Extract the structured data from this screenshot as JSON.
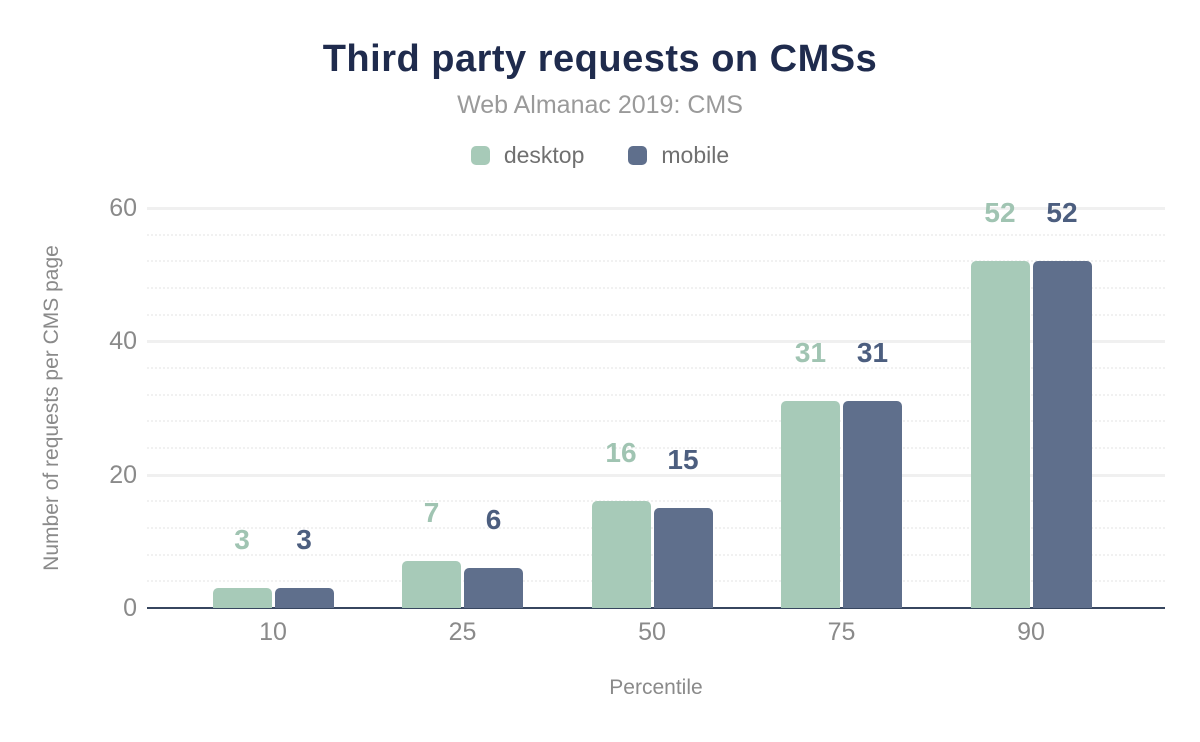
{
  "chart_data": {
    "type": "bar",
    "title": "Third party requests on CMSs",
    "subtitle": "Web Almanac 2019: CMS",
    "xlabel": "Percentile",
    "ylabel": "Number of requests per CMS page",
    "categories": [
      "10",
      "25",
      "50",
      "75",
      "90"
    ],
    "series": [
      {
        "name": "desktop",
        "color": "#a7cab8",
        "label_color": "#a0c4b2",
        "values": [
          3,
          7,
          16,
          31,
          52
        ]
      },
      {
        "name": "mobile",
        "color": "#5f6f8c",
        "label_color": "#4c5e7f",
        "values": [
          3,
          6,
          15,
          31,
          52
        ]
      }
    ],
    "ylim": [
      0,
      60
    ],
    "yticks": [
      0,
      20,
      40,
      60
    ],
    "grid": {
      "orientation": "horizontal",
      "major_step": 20,
      "minor_step": 4
    },
    "legend_position": "top"
  },
  "colors": {
    "background": "#ffffff",
    "title": "#1f2b4d",
    "subtitle": "#9a9a9a",
    "axis_text": "#8a8a8a",
    "legend_text": "#707070",
    "axis_line": "#37465f",
    "grid_major": "#f0f0f0",
    "grid_minor": "#f1f1f1"
  }
}
